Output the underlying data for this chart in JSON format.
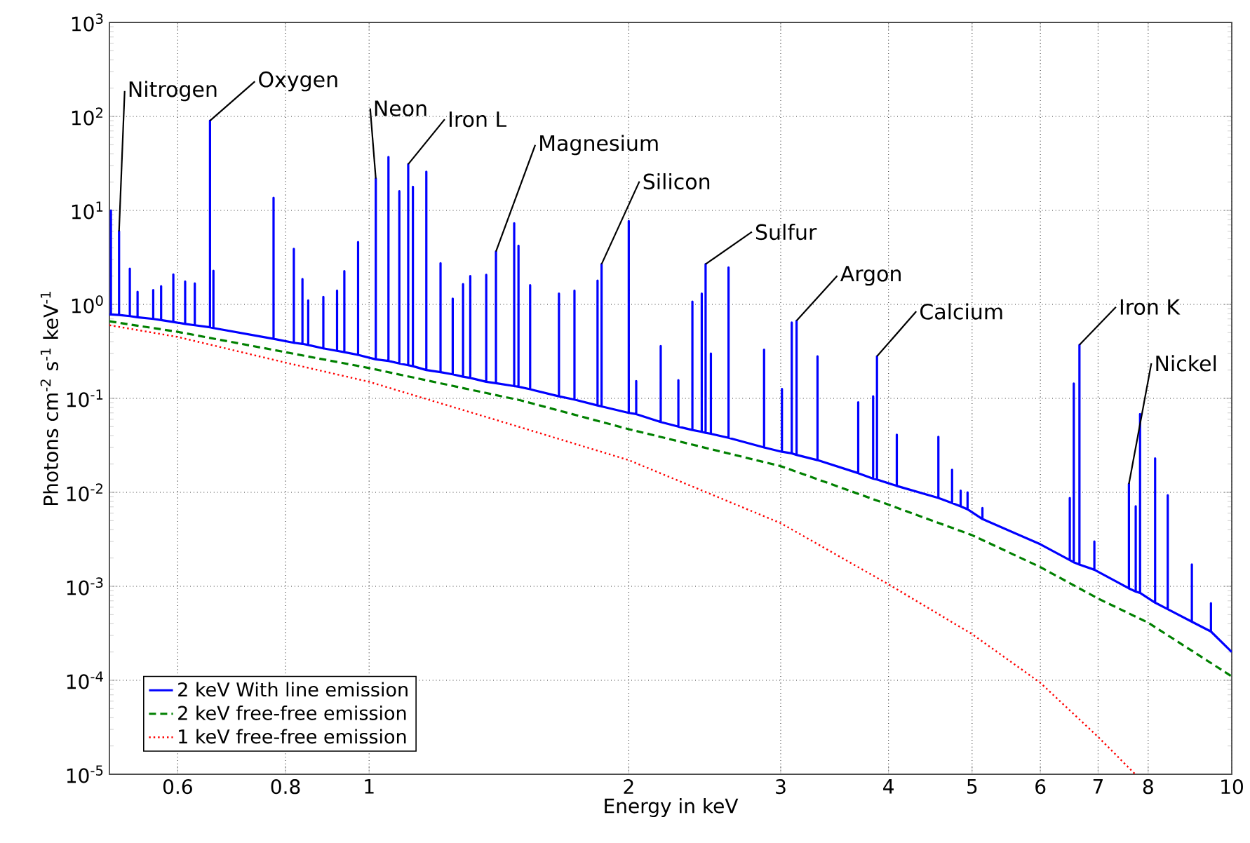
{
  "chart_data": {
    "type": "line",
    "xlabel": "Energy in keV",
    "ylabel": "Photons cm$^{-2}$ s$^{-1}$ keV$^{-1}$",
    "log": "xy",
    "grid": true,
    "legend": "bottom left",
    "marker": "none",
    "xlim": [
      0.5,
      10
    ],
    "ylim": [
      1e-05,
      1000
    ],
    "xticks": [
      0.6,
      0.8,
      1,
      2,
      3,
      4,
      5,
      6,
      7,
      8,
      10
    ],
    "yticks": [
      {
        "value": 1e-05,
        "label": "10$^{-5}$"
      },
      {
        "value": 0.0001,
        "label": "10$^{-4}$"
      },
      {
        "value": 0.001,
        "label": "10$^{-3}$"
      },
      {
        "value": 0.01,
        "label": "10$^{-2}$"
      },
      {
        "value": 0.1,
        "label": "10$^{-1}$"
      },
      {
        "value": 1,
        "label": "10$^{0}$"
      },
      {
        "value": 10,
        "label": "10$^{1}$"
      },
      {
        "value": 100,
        "label": "10$^{2}$"
      },
      {
        "value": 1000,
        "label": "10$^{3}$"
      }
    ],
    "series": [
      {
        "name": "2 keV With line emission",
        "color": "#0000ff",
        "line_style": "solid",
        "x": [
          0.5,
          0.502,
          0.502,
          0.502,
          0.513,
          0.513,
          0.513,
          0.528,
          0.528,
          0.528,
          0.539,
          0.539,
          0.539,
          0.562,
          0.562,
          0.562,
          0.574,
          0.574,
          0.574,
          0.593,
          0.593,
          0.593,
          0.612,
          0.612,
          0.612,
          0.628,
          0.628,
          0.628,
          0.654,
          0.654,
          0.654,
          0.66,
          0.66,
          0.66,
          0.775,
          0.775,
          0.775,
          0.818,
          0.818,
          0.818,
          0.837,
          0.837,
          0.837,
          0.85,
          0.85,
          0.85,
          0.885,
          0.885,
          0.885,
          0.918,
          0.918,
          0.918,
          0.936,
          0.936,
          0.936,
          0.971,
          0.971,
          0.971,
          1.018,
          1.018,
          1.018,
          1.053,
          1.053,
          1.053,
          1.084,
          1.084,
          1.084,
          1.11,
          1.11,
          1.11,
          1.124,
          1.124,
          1.124,
          1.165,
          1.165,
          1.165,
          1.21,
          1.21,
          1.21,
          1.25,
          1.25,
          1.25,
          1.285,
          1.285,
          1.285,
          1.31,
          1.31,
          1.31,
          1.367,
          1.367,
          1.367,
          1.403,
          1.403,
          1.403,
          1.473,
          1.473,
          1.473,
          1.49,
          1.49,
          1.49,
          1.537,
          1.537,
          1.537,
          1.66,
          1.66,
          1.66,
          1.73,
          1.73,
          1.73,
          1.84,
          1.84,
          1.84,
          1.86,
          1.86,
          1.86,
          2.0,
          2.0,
          2.0,
          2.04,
          2.04,
          2.04,
          2.178,
          2.178,
          2.178,
          2.283,
          2.283,
          2.283,
          2.37,
          2.37,
          2.37,
          2.43,
          2.43,
          2.43,
          2.455,
          2.455,
          2.455,
          2.49,
          2.49,
          2.49,
          2.61,
          2.61,
          2.61,
          2.87,
          2.87,
          2.87,
          3.01,
          3.01,
          3.01,
          3.09,
          3.09,
          3.09,
          3.13,
          3.13,
          3.13,
          3.31,
          3.31,
          3.31,
          3.69,
          3.69,
          3.69,
          3.84,
          3.84,
          3.84,
          3.88,
          3.88,
          3.88,
          4.09,
          4.09,
          4.09,
          4.57,
          4.57,
          4.57,
          4.74,
          4.74,
          4.74,
          4.85,
          4.85,
          4.85,
          4.94,
          4.94,
          4.94,
          5.14,
          5.14,
          5.14,
          6.0,
          6.49,
          6.49,
          6.49,
          6.56,
          6.56,
          6.56,
          6.66,
          6.66,
          6.66,
          6.93,
          6.93,
          6.93,
          7.6,
          7.6,
          7.6,
          7.74,
          7.74,
          7.74,
          7.83,
          7.83,
          7.83,
          8.15,
          8.15,
          8.15,
          8.43,
          8.43,
          8.43,
          8.99,
          8.99,
          8.99,
          9.46,
          9.46,
          9.46,
          10
        ],
        "values": [
          0.78,
          0.78,
          10,
          0.78,
          0.77,
          6,
          0.77,
          0.75,
          2.4,
          0.75,
          0.73,
          1.36,
          0.73,
          0.7,
          1.42,
          0.7,
          0.68,
          1.56,
          0.68,
          0.65,
          2.08,
          0.65,
          0.62,
          1.75,
          0.62,
          0.6,
          1.67,
          0.6,
          0.57,
          90,
          0.57,
          0.56,
          2.28,
          0.56,
          0.43,
          13.6,
          0.43,
          0.39,
          3.9,
          0.39,
          0.38,
          1.86,
          0.38,
          0.37,
          1.1,
          0.37,
          0.34,
          1.2,
          0.34,
          0.32,
          1.4,
          0.32,
          0.31,
          2.26,
          0.31,
          0.29,
          4.6,
          0.29,
          0.26,
          21.8,
          0.26,
          0.25,
          37,
          0.25,
          0.235,
          16,
          0.235,
          0.225,
          31,
          0.225,
          0.22,
          17.8,
          0.22,
          0.2,
          25.8,
          0.2,
          0.19,
          2.74,
          0.19,
          0.18,
          1.15,
          0.18,
          0.17,
          1.64,
          0.17,
          0.165,
          2,
          0.165,
          0.15,
          2.06,
          0.15,
          0.145,
          3.65,
          0.145,
          0.135,
          7.3,
          0.135,
          0.133,
          4.2,
          0.133,
          0.125,
          1.6,
          0.125,
          0.105,
          1.3,
          0.105,
          0.097,
          1.4,
          0.097,
          0.084,
          1.79,
          0.084,
          0.082,
          2.68,
          0.082,
          0.07,
          7.7,
          0.07,
          0.068,
          0.153,
          0.068,
          0.056,
          0.36,
          0.056,
          0.05,
          0.156,
          0.05,
          0.046,
          1.07,
          0.046,
          0.044,
          1.3,
          0.044,
          0.043,
          2.68,
          0.043,
          0.042,
          0.3,
          0.042,
          0.038,
          2.47,
          0.038,
          0.03,
          0.33,
          0.03,
          0.027,
          0.126,
          0.027,
          0.026,
          0.64,
          0.026,
          0.025,
          0.67,
          0.025,
          0.022,
          0.28,
          0.022,
          0.016,
          0.091,
          0.016,
          0.014,
          0.105,
          0.014,
          0.0137,
          0.28,
          0.0137,
          0.0117,
          0.041,
          0.0117,
          0.0087,
          0.039,
          0.0087,
          0.0077,
          0.0174,
          0.0077,
          0.0071,
          0.0104,
          0.0071,
          0.0066,
          0.01,
          0.0066,
          0.0052,
          0.0068,
          0.0052,
          0.0028,
          0.0019,
          0.0087,
          0.0019,
          0.0018,
          0.144,
          0.0018,
          0.0017,
          0.37,
          0.0017,
          0.0015,
          0.003,
          0.0015,
          0.00095,
          0.0123,
          0.00095,
          0.00088,
          0.0071,
          0.00088,
          0.00085,
          0.068,
          0.00085,
          0.00067,
          0.023,
          0.00067,
          0.00057,
          0.0093,
          0.00057,
          0.00042,
          0.00171,
          0.00042,
          0.00033,
          0.00066,
          0.00033,
          0.0002
        ]
      },
      {
        "name": "2 keV free-free emission",
        "color": "#008000",
        "line_style": "dashed",
        "x": [
          0.5,
          0.6,
          0.8,
          1,
          1.5,
          2,
          3,
          4,
          5,
          6,
          7,
          8,
          10
        ],
        "values": [
          0.66,
          0.51,
          0.31,
          0.21,
          0.095,
          0.047,
          0.019,
          0.0074,
          0.0035,
          0.0016,
          0.00074,
          0.00041,
          0.00011
        ]
      },
      {
        "name": "1 keV free-free emission",
        "color": "#ff0000",
        "line_style": "dotted",
        "x": [
          0.5,
          0.6,
          0.8,
          1,
          1.5,
          2,
          3,
          4,
          5,
          6,
          7,
          7.73
        ],
        "values": [
          0.6,
          0.45,
          0.24,
          0.15,
          0.049,
          0.022,
          0.0047,
          0.00105,
          0.00031,
          9.4e-05,
          2.5e-05,
          1e-05
        ]
      }
    ],
    "annotations": [
      {
        "text": "Nitrogen",
        "x": 0.513,
        "y": 6
      },
      {
        "text": "Oxygen",
        "x": 0.654,
        "y": 90
      },
      {
        "text": "Neon",
        "x": 1.018,
        "y": 21.8
      },
      {
        "text": "Iron L",
        "x": 1.11,
        "y": 31
      },
      {
        "text": "Magnesium",
        "x": 1.403,
        "y": 3.65
      },
      {
        "text": "Silicon",
        "x": 1.86,
        "y": 2.68
      },
      {
        "text": "Sulfur",
        "x": 2.455,
        "y": 2.68
      },
      {
        "text": "Argon",
        "x": 3.13,
        "y": 0.67
      },
      {
        "text": "Calcium",
        "x": 3.88,
        "y": 0.28
      },
      {
        "text": "Iron K",
        "x": 6.66,
        "y": 0.37
      },
      {
        "text": "Nickel",
        "x": 7.6,
        "y": 0.0123
      }
    ]
  }
}
